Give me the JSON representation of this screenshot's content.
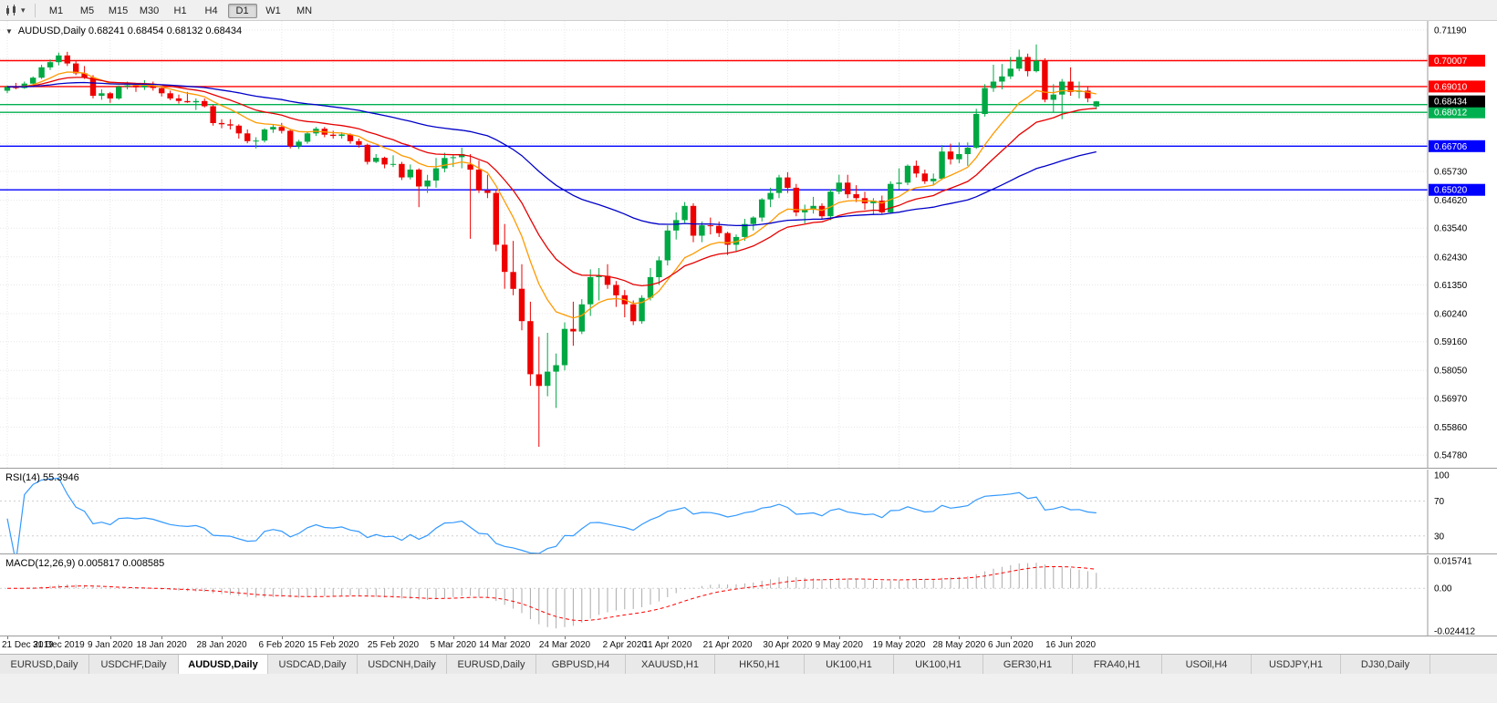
{
  "toolbar": {
    "chart_icon": "candlestick-chart-icon",
    "caret_glyph": "▾",
    "timeframes": [
      "M1",
      "M5",
      "M15",
      "M30",
      "H1",
      "H4",
      "D1",
      "W1",
      "MN"
    ],
    "active_timeframe": "D1"
  },
  "main_chart": {
    "title": "AUDUSD,Daily 0.68241 0.68454 0.68132 0.68434",
    "collapse_glyph": "▼"
  },
  "rsi_panel": {
    "label": "RSI(14) 55.3946"
  },
  "macd_panel": {
    "label": "MACD(12,26,9) 0.005817 0.008585"
  },
  "tabs": {
    "active_index": 2,
    "items": [
      "EURUSD,Daily",
      "USDCHF,Daily",
      "AUDUSD,Daily",
      "USDCAD,Daily",
      "USDCNH,Daily",
      "EURUSD,Daily",
      "GBPUSD,H4",
      "XAUUSD,H1",
      "HK50,H1",
      "UK100,H1",
      "UK100,H1",
      "GER30,H1",
      "FRA40,H1",
      "USOil,H4",
      "USDJPY,H1",
      "DJ30,Daily"
    ],
    "note": "active tab is AUDUSD,Daily"
  },
  "chart_data": {
    "type": "candlestick",
    "title": "AUDUSD,Daily 0.68241 0.68454 0.68132 0.68434",
    "symbol": "AUDUSD",
    "timeframe": "Daily",
    "ohlc_current": {
      "open": 0.68241,
      "high": 0.68454,
      "low": 0.68132,
      "close": 0.68434
    },
    "ylim": [
      0.5429,
      0.7154
    ],
    "bull_color": "#00A843",
    "bear_color": "#EE0000",
    "current_price": 0.68434,
    "current_price_label": "0.68434",
    "price_gridlines": [
      0.7119,
      0.7008,
      0.69,
      0.6792,
      0.6681,
      0.6573,
      0.6462,
      0.6354,
      0.6243,
      0.6135,
      0.6024,
      0.5916,
      0.5805,
      0.5697,
      0.5586,
      0.5478
    ],
    "price_axis_labels": [
      {
        "value": 0.7119,
        "label": "0.71190"
      },
      {
        "value": 0.6573,
        "label": "0.65730"
      },
      {
        "value": 0.6462,
        "label": "0.64620"
      },
      {
        "value": 0.6354,
        "label": "0.63540"
      },
      {
        "value": 0.6243,
        "label": "0.62430"
      },
      {
        "value": 0.6135,
        "label": "0.61350"
      },
      {
        "value": 0.6024,
        "label": "0.60240"
      },
      {
        "value": 0.5916,
        "label": "0.59160"
      },
      {
        "value": 0.5805,
        "label": "0.58050"
      },
      {
        "value": 0.5697,
        "label": "0.56970"
      },
      {
        "value": 0.5586,
        "label": "0.55860"
      },
      {
        "value": 0.5478,
        "label": "0.54780"
      }
    ],
    "hlines": [
      {
        "price": 0.70007,
        "label": "0.70007",
        "color": "#FF0000"
      },
      {
        "price": 0.6901,
        "label": "0.69010",
        "color": "#FF0000"
      },
      {
        "price": 0.68312,
        "label": "0.68312",
        "color": "#00B050"
      },
      {
        "price": 0.68012,
        "label": "0.68012",
        "color": "#00B050"
      },
      {
        "price": 0.66706,
        "label": "0.66706",
        "color": "#0000FF"
      },
      {
        "price": 0.6502,
        "label": "0.65020",
        "color": "#0000FF"
      }
    ],
    "moving_averages": [
      {
        "period": 10,
        "color": "#FF9900"
      },
      {
        "period": 20,
        "color": "#E60000"
      },
      {
        "period": 55,
        "color": "#0000C8"
      }
    ],
    "date_ticks": [
      [
        0,
        "21 Dec 2019"
      ],
      [
        6,
        "31 Dec 2019"
      ],
      [
        12,
        "9 Jan 2020"
      ],
      [
        18,
        "18 Jan 2020"
      ],
      [
        25,
        "28 Jan 2020"
      ],
      [
        32,
        "6 Feb 2020"
      ],
      [
        38,
        "15 Feb 2020"
      ],
      [
        45,
        "25 Feb 2020"
      ],
      [
        52,
        "5 Mar 2020"
      ],
      [
        58,
        "14 Mar 2020"
      ],
      [
        65,
        "24 Mar 2020"
      ],
      [
        72,
        "2 Apr 2020"
      ],
      [
        77,
        "11 Apr 2020"
      ],
      [
        84,
        "21 Apr 2020"
      ],
      [
        91,
        "30 Apr 2020"
      ],
      [
        97,
        "9 May 2020"
      ],
      [
        104,
        "19 May 2020"
      ],
      [
        111,
        "28 May 2020"
      ],
      [
        117,
        "6 Jun 2020"
      ],
      [
        124,
        "16 Jun 2020"
      ]
    ],
    "candles": [
      [
        0.6885,
        0.6905,
        0.6875,
        0.69
      ],
      [
        0.69,
        0.6915,
        0.689,
        0.6895
      ],
      [
        0.6895,
        0.692,
        0.6892,
        0.6912
      ],
      [
        0.6912,
        0.694,
        0.6905,
        0.6935
      ],
      [
        0.6935,
        0.6985,
        0.693,
        0.6975
      ],
      [
        0.6975,
        0.7005,
        0.6965,
        0.6995
      ],
      [
        0.6995,
        0.7032,
        0.6983,
        0.7021
      ],
      [
        0.7021,
        0.7035,
        0.698,
        0.699
      ],
      [
        0.699,
        0.7,
        0.6945,
        0.6952
      ],
      [
        0.6952,
        0.698,
        0.693,
        0.6936
      ],
      [
        0.6936,
        0.6945,
        0.6855,
        0.6865
      ],
      [
        0.6865,
        0.689,
        0.685,
        0.6875
      ],
      [
        0.6875,
        0.688,
        0.6838,
        0.6855
      ],
      [
        0.6855,
        0.6905,
        0.685,
        0.69
      ],
      [
        0.69,
        0.692,
        0.689,
        0.6905
      ],
      [
        0.6905,
        0.6912,
        0.688,
        0.6898
      ],
      [
        0.6898,
        0.6925,
        0.6888,
        0.6905
      ],
      [
        0.6905,
        0.692,
        0.6885,
        0.6895
      ],
      [
        0.6895,
        0.69,
        0.6862,
        0.6875
      ],
      [
        0.6875,
        0.6885,
        0.6848,
        0.6855
      ],
      [
        0.6855,
        0.687,
        0.6835,
        0.6845
      ],
      [
        0.6845,
        0.688,
        0.6838,
        0.684
      ],
      [
        0.684,
        0.6855,
        0.681,
        0.6845
      ],
      [
        0.6845,
        0.6855,
        0.682,
        0.6825
      ],
      [
        0.6825,
        0.683,
        0.675,
        0.676
      ],
      [
        0.676,
        0.6775,
        0.674,
        0.6755
      ],
      [
        0.6755,
        0.6775,
        0.6735,
        0.675
      ],
      [
        0.675,
        0.6755,
        0.67,
        0.672
      ],
      [
        0.672,
        0.6735,
        0.6682,
        0.669
      ],
      [
        0.669,
        0.6705,
        0.6662,
        0.6692
      ],
      [
        0.6692,
        0.674,
        0.6685,
        0.6735
      ],
      [
        0.6735,
        0.6755,
        0.6722,
        0.6745
      ],
      [
        0.6745,
        0.676,
        0.672,
        0.673
      ],
      [
        0.673,
        0.6735,
        0.6662,
        0.667
      ],
      [
        0.667,
        0.6695,
        0.666,
        0.6688
      ],
      [
        0.6688,
        0.6725,
        0.668,
        0.672
      ],
      [
        0.672,
        0.6745,
        0.671,
        0.6738
      ],
      [
        0.6738,
        0.6745,
        0.6705,
        0.6715
      ],
      [
        0.6715,
        0.673,
        0.67,
        0.671
      ],
      [
        0.671,
        0.6725,
        0.67,
        0.6716
      ],
      [
        0.6716,
        0.672,
        0.668,
        0.669
      ],
      [
        0.669,
        0.67,
        0.6665,
        0.6676
      ],
      [
        0.6676,
        0.668,
        0.66,
        0.661
      ],
      [
        0.661,
        0.664,
        0.6605,
        0.6626
      ],
      [
        0.6626,
        0.663,
        0.6585,
        0.66
      ],
      [
        0.66,
        0.6635,
        0.659,
        0.6602
      ],
      [
        0.6602,
        0.661,
        0.654,
        0.655
      ],
      [
        0.655,
        0.66,
        0.6542,
        0.658
      ],
      [
        0.658,
        0.6585,
        0.6435,
        0.6515
      ],
      [
        0.6515,
        0.656,
        0.649,
        0.6538
      ],
      [
        0.6538,
        0.6625,
        0.651,
        0.6585
      ],
      [
        0.6585,
        0.6645,
        0.657,
        0.6625
      ],
      [
        0.6625,
        0.664,
        0.659,
        0.6628
      ],
      [
        0.6628,
        0.6665,
        0.6585,
        0.664
      ],
      [
        0.66,
        0.664,
        0.6313,
        0.658
      ],
      [
        0.658,
        0.6615,
        0.649,
        0.65
      ],
      [
        0.65,
        0.656,
        0.647,
        0.649
      ],
      [
        0.649,
        0.65,
        0.6265,
        0.629
      ],
      [
        0.629,
        0.637,
        0.612,
        0.6185
      ],
      [
        0.6185,
        0.6305,
        0.6095,
        0.612
      ],
      [
        0.612,
        0.6215,
        0.596,
        0.5995
      ],
      [
        0.5995,
        0.607,
        0.5745,
        0.579
      ],
      [
        0.579,
        0.5935,
        0.551,
        0.5745
      ],
      [
        0.5745,
        0.595,
        0.5705,
        0.58
      ],
      [
        0.58,
        0.587,
        0.566,
        0.5825
      ],
      [
        0.5825,
        0.599,
        0.5805,
        0.5965
      ],
      [
        0.5965,
        0.607,
        0.59,
        0.5955
      ],
      [
        0.5955,
        0.608,
        0.5945,
        0.606
      ],
      [
        0.606,
        0.6195,
        0.6015,
        0.6165
      ],
      [
        0.6165,
        0.62,
        0.6075,
        0.617
      ],
      [
        0.617,
        0.6215,
        0.612,
        0.6135
      ],
      [
        0.6135,
        0.615,
        0.605,
        0.6095
      ],
      [
        0.6095,
        0.6115,
        0.601,
        0.606
      ],
      [
        0.606,
        0.6075,
        0.598,
        0.5995
      ],
      [
        0.5995,
        0.6095,
        0.5985,
        0.6085
      ],
      [
        0.6085,
        0.62,
        0.6075,
        0.6165
      ],
      [
        0.6165,
        0.6245,
        0.6135,
        0.623
      ],
      [
        0.623,
        0.6365,
        0.621,
        0.6345
      ],
      [
        0.6345,
        0.6415,
        0.631,
        0.6385
      ],
      [
        0.6385,
        0.6455,
        0.6375,
        0.644
      ],
      [
        0.644,
        0.645,
        0.63,
        0.6325
      ],
      [
        0.6325,
        0.638,
        0.63,
        0.6365
      ],
      [
        0.6365,
        0.6395,
        0.633,
        0.6363
      ],
      [
        0.6363,
        0.638,
        0.632,
        0.6335
      ],
      [
        0.6335,
        0.634,
        0.625,
        0.629
      ],
      [
        0.629,
        0.633,
        0.6265,
        0.632
      ],
      [
        0.632,
        0.639,
        0.6305,
        0.637
      ],
      [
        0.637,
        0.64,
        0.6345,
        0.6395
      ],
      [
        0.6395,
        0.647,
        0.638,
        0.6465
      ],
      [
        0.6465,
        0.651,
        0.6435,
        0.649
      ],
      [
        0.649,
        0.656,
        0.647,
        0.655
      ],
      [
        0.655,
        0.657,
        0.649,
        0.651
      ],
      [
        0.651,
        0.6525,
        0.64,
        0.6415
      ],
      [
        0.6415,
        0.6445,
        0.6372,
        0.6425
      ],
      [
        0.6425,
        0.6475,
        0.641,
        0.644
      ],
      [
        0.644,
        0.645,
        0.639,
        0.64
      ],
      [
        0.64,
        0.6505,
        0.6385,
        0.6495
      ],
      [
        0.6495,
        0.656,
        0.6485,
        0.653
      ],
      [
        0.653,
        0.656,
        0.647,
        0.6485
      ],
      [
        0.6485,
        0.652,
        0.6455,
        0.647
      ],
      [
        0.647,
        0.6495,
        0.6425,
        0.645
      ],
      [
        0.645,
        0.647,
        0.6405,
        0.646
      ],
      [
        0.646,
        0.648,
        0.641,
        0.6415
      ],
      [
        0.6415,
        0.6535,
        0.641,
        0.6525
      ],
      [
        0.6525,
        0.6585,
        0.6505,
        0.653
      ],
      [
        0.653,
        0.66,
        0.652,
        0.6595
      ],
      [
        0.6595,
        0.6615,
        0.655,
        0.6565
      ],
      [
        0.6565,
        0.658,
        0.6525,
        0.6535
      ],
      [
        0.6535,
        0.6565,
        0.652,
        0.6545
      ],
      [
        0.6545,
        0.6675,
        0.654,
        0.665
      ],
      [
        0.665,
        0.668,
        0.66,
        0.662
      ],
      [
        0.662,
        0.6685,
        0.6605,
        0.664
      ],
      [
        0.664,
        0.6685,
        0.6595,
        0.6665
      ],
      [
        0.6665,
        0.6815,
        0.666,
        0.6795
      ],
      [
        0.6795,
        0.691,
        0.6785,
        0.6895
      ],
      [
        0.6895,
        0.6985,
        0.688,
        0.692
      ],
      [
        0.692,
        0.6988,
        0.689,
        0.694
      ],
      [
        0.694,
        0.7015,
        0.693,
        0.697
      ],
      [
        0.697,
        0.7043,
        0.696,
        0.7015
      ],
      [
        0.7015,
        0.7028,
        0.694,
        0.696
      ],
      [
        0.696,
        0.7063,
        0.6955,
        0.7
      ],
      [
        0.7,
        0.701,
        0.684,
        0.685
      ],
      [
        0.685,
        0.691,
        0.68,
        0.687
      ],
      [
        0.687,
        0.693,
        0.6775,
        0.692
      ],
      [
        0.692,
        0.6975,
        0.6865,
        0.688
      ],
      [
        0.688,
        0.692,
        0.6855,
        0.6885
      ],
      [
        0.6885,
        0.69,
        0.684,
        0.6855
      ],
      [
        0.68241,
        0.68454,
        0.68132,
        0.68434
      ]
    ],
    "rsi": {
      "period": 14,
      "current": 55.3946,
      "color": "#3399FF",
      "levels": [
        100,
        70,
        30
      ],
      "range": [
        10,
        106
      ]
    },
    "macd": {
      "fast": 12,
      "slow": 26,
      "signal_period": 9,
      "current_macd": 0.005817,
      "current_signal": 0.008585,
      "hist_color": "#ABABAB",
      "signal_color": "#FF0000",
      "range": [
        -0.027,
        0.0189
      ],
      "axis_labels": [
        {
          "value": 0.015741,
          "label": "0.015741"
        },
        {
          "value": 0,
          "label": "0.00"
        },
        {
          "value": -0.024412,
          "label": "-0.024412"
        }
      ]
    }
  }
}
